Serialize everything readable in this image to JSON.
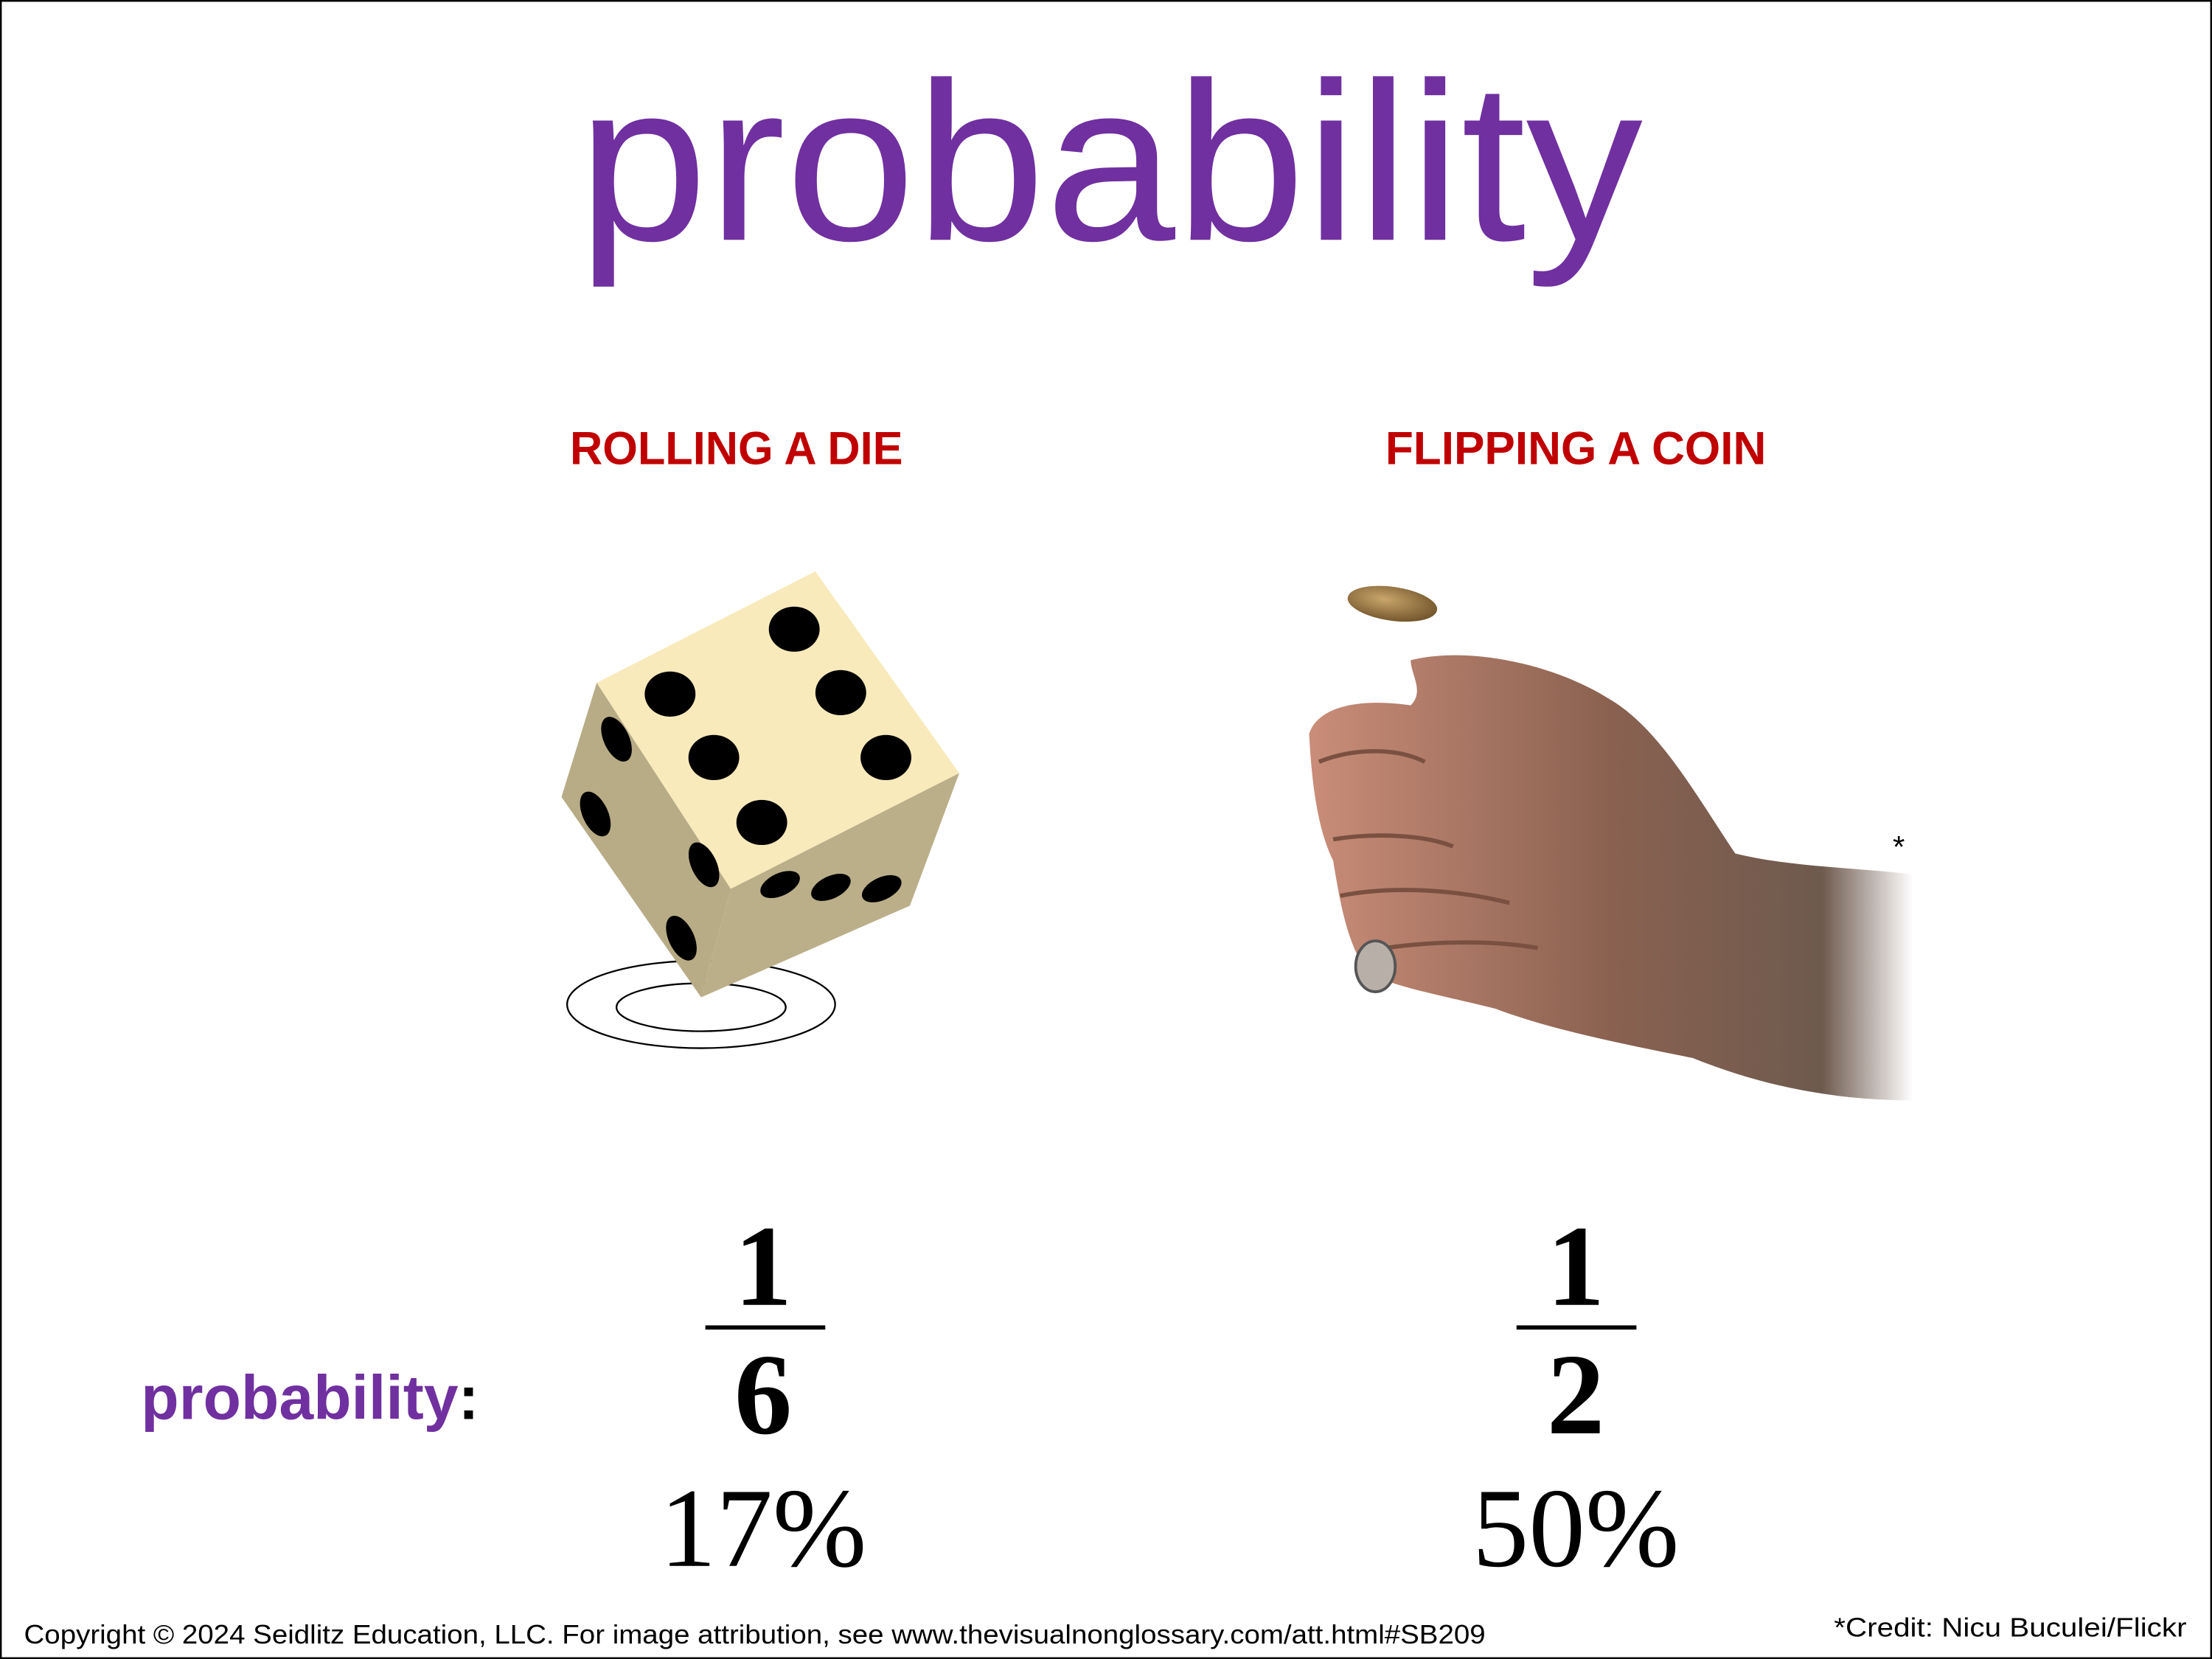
{
  "title": "probability",
  "colors": {
    "title": "#7030A0",
    "heading": "#C00000",
    "die_top": "#F8EABB",
    "die_side": "#B8AC86",
    "text": "#000000"
  },
  "examples": [
    {
      "heading": "ROLLING A DIE",
      "image": "die-icon",
      "numerator": "1",
      "denominator": "6",
      "percent": "17%"
    },
    {
      "heading": "FLIPPING A COIN",
      "image": "hand-flipping-coin",
      "numerator": "1",
      "denominator": "2",
      "percent": "50%",
      "credit_mark": "*"
    }
  ],
  "row_label": {
    "word": "probability",
    "colon": ":"
  },
  "footer": {
    "copyright": "Copyright © 2024 Seidlitz Education, LLC.  For image attribution, see www.thevisualnonglossary.com/att.html#SB209",
    "credit": "*Credit: Nicu Buculei/Flickr"
  }
}
